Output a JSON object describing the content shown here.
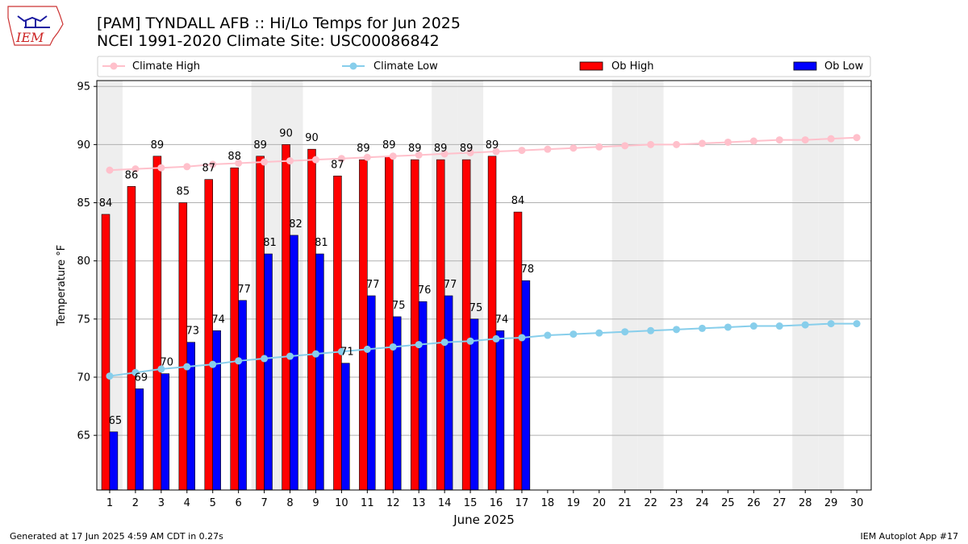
{
  "header": {
    "logo_text": "IEM",
    "title_line1": "[PAM] TYNDALL AFB :: Hi/Lo Temps for Jun 2025",
    "title_line2": "NCEI 1991-2020 Climate Site: USC00086842"
  },
  "footer": {
    "generated": "Generated at 17 Jun 2025 4:59 AM CDT in 0.27s",
    "app": "IEM Autoplot App #17"
  },
  "colors": {
    "ob_high": "#ff0000",
    "ob_low": "#0000ff",
    "climate_high": "#ffc0cb",
    "climate_low": "#87ceeb",
    "weekend_shade": "#eeeeee",
    "grid": "#b0b0b0"
  },
  "chart_data": {
    "type": "bar",
    "xlabel": "June 2025",
    "ylabel": "Temperature °F",
    "ylim": [
      60.3,
      95.5
    ],
    "yticks": [
      65,
      70,
      75,
      80,
      85,
      90,
      95
    ],
    "grid": true,
    "legend_placement": "top",
    "days": [
      1,
      2,
      3,
      4,
      5,
      6,
      7,
      8,
      9,
      10,
      11,
      12,
      13,
      14,
      15,
      16,
      17,
      18,
      19,
      20,
      21,
      22,
      23,
      24,
      25,
      26,
      27,
      28,
      29,
      30
    ],
    "weekend_days": [
      1,
      7,
      8,
      14,
      15,
      21,
      22,
      28,
      29
    ],
    "series": [
      {
        "name": "Climate High",
        "type": "line",
        "values": [
          87.8,
          87.9,
          88.0,
          88.1,
          88.3,
          88.4,
          88.5,
          88.6,
          88.7,
          88.8,
          88.9,
          89.0,
          89.1,
          89.2,
          89.3,
          89.4,
          89.5,
          89.6,
          89.7,
          89.8,
          89.9,
          90.0,
          90.0,
          90.1,
          90.2,
          90.3,
          90.4,
          90.4,
          90.5,
          90.6
        ]
      },
      {
        "name": "Climate Low",
        "type": "line",
        "values": [
          70.1,
          70.4,
          70.7,
          70.9,
          71.1,
          71.4,
          71.6,
          71.8,
          72.0,
          72.2,
          72.4,
          72.6,
          72.8,
          73.0,
          73.1,
          73.3,
          73.4,
          73.6,
          73.7,
          73.8,
          73.9,
          74.0,
          74.1,
          74.2,
          74.3,
          74.4,
          74.4,
          74.5,
          74.6,
          74.6
        ]
      },
      {
        "name": "Ob High",
        "type": "bar",
        "values": [
          84,
          86.4,
          89,
          85,
          87,
          88,
          89,
          90,
          89.6,
          87.3,
          88.7,
          89,
          88.7,
          88.7,
          88.7,
          89,
          84.2
        ],
        "labels": [
          "84",
          "86",
          "89",
          "85",
          "87",
          "88",
          "89",
          "90",
          "90",
          "87",
          "89",
          "89",
          "89",
          "89",
          "89",
          "89",
          "84"
        ]
      },
      {
        "name": "Ob Low",
        "type": "bar",
        "values": [
          65.3,
          69,
          70.3,
          73,
          74,
          76.6,
          80.6,
          82.2,
          80.6,
          71.2,
          77,
          75.2,
          76.5,
          77,
          75,
          74,
          78.3
        ],
        "labels": [
          "65",
          "69",
          "70",
          "73",
          "74",
          "77",
          "81",
          "82",
          "81",
          "71",
          "77",
          "75",
          "76",
          "77",
          "75",
          "74",
          "78"
        ]
      }
    ]
  }
}
